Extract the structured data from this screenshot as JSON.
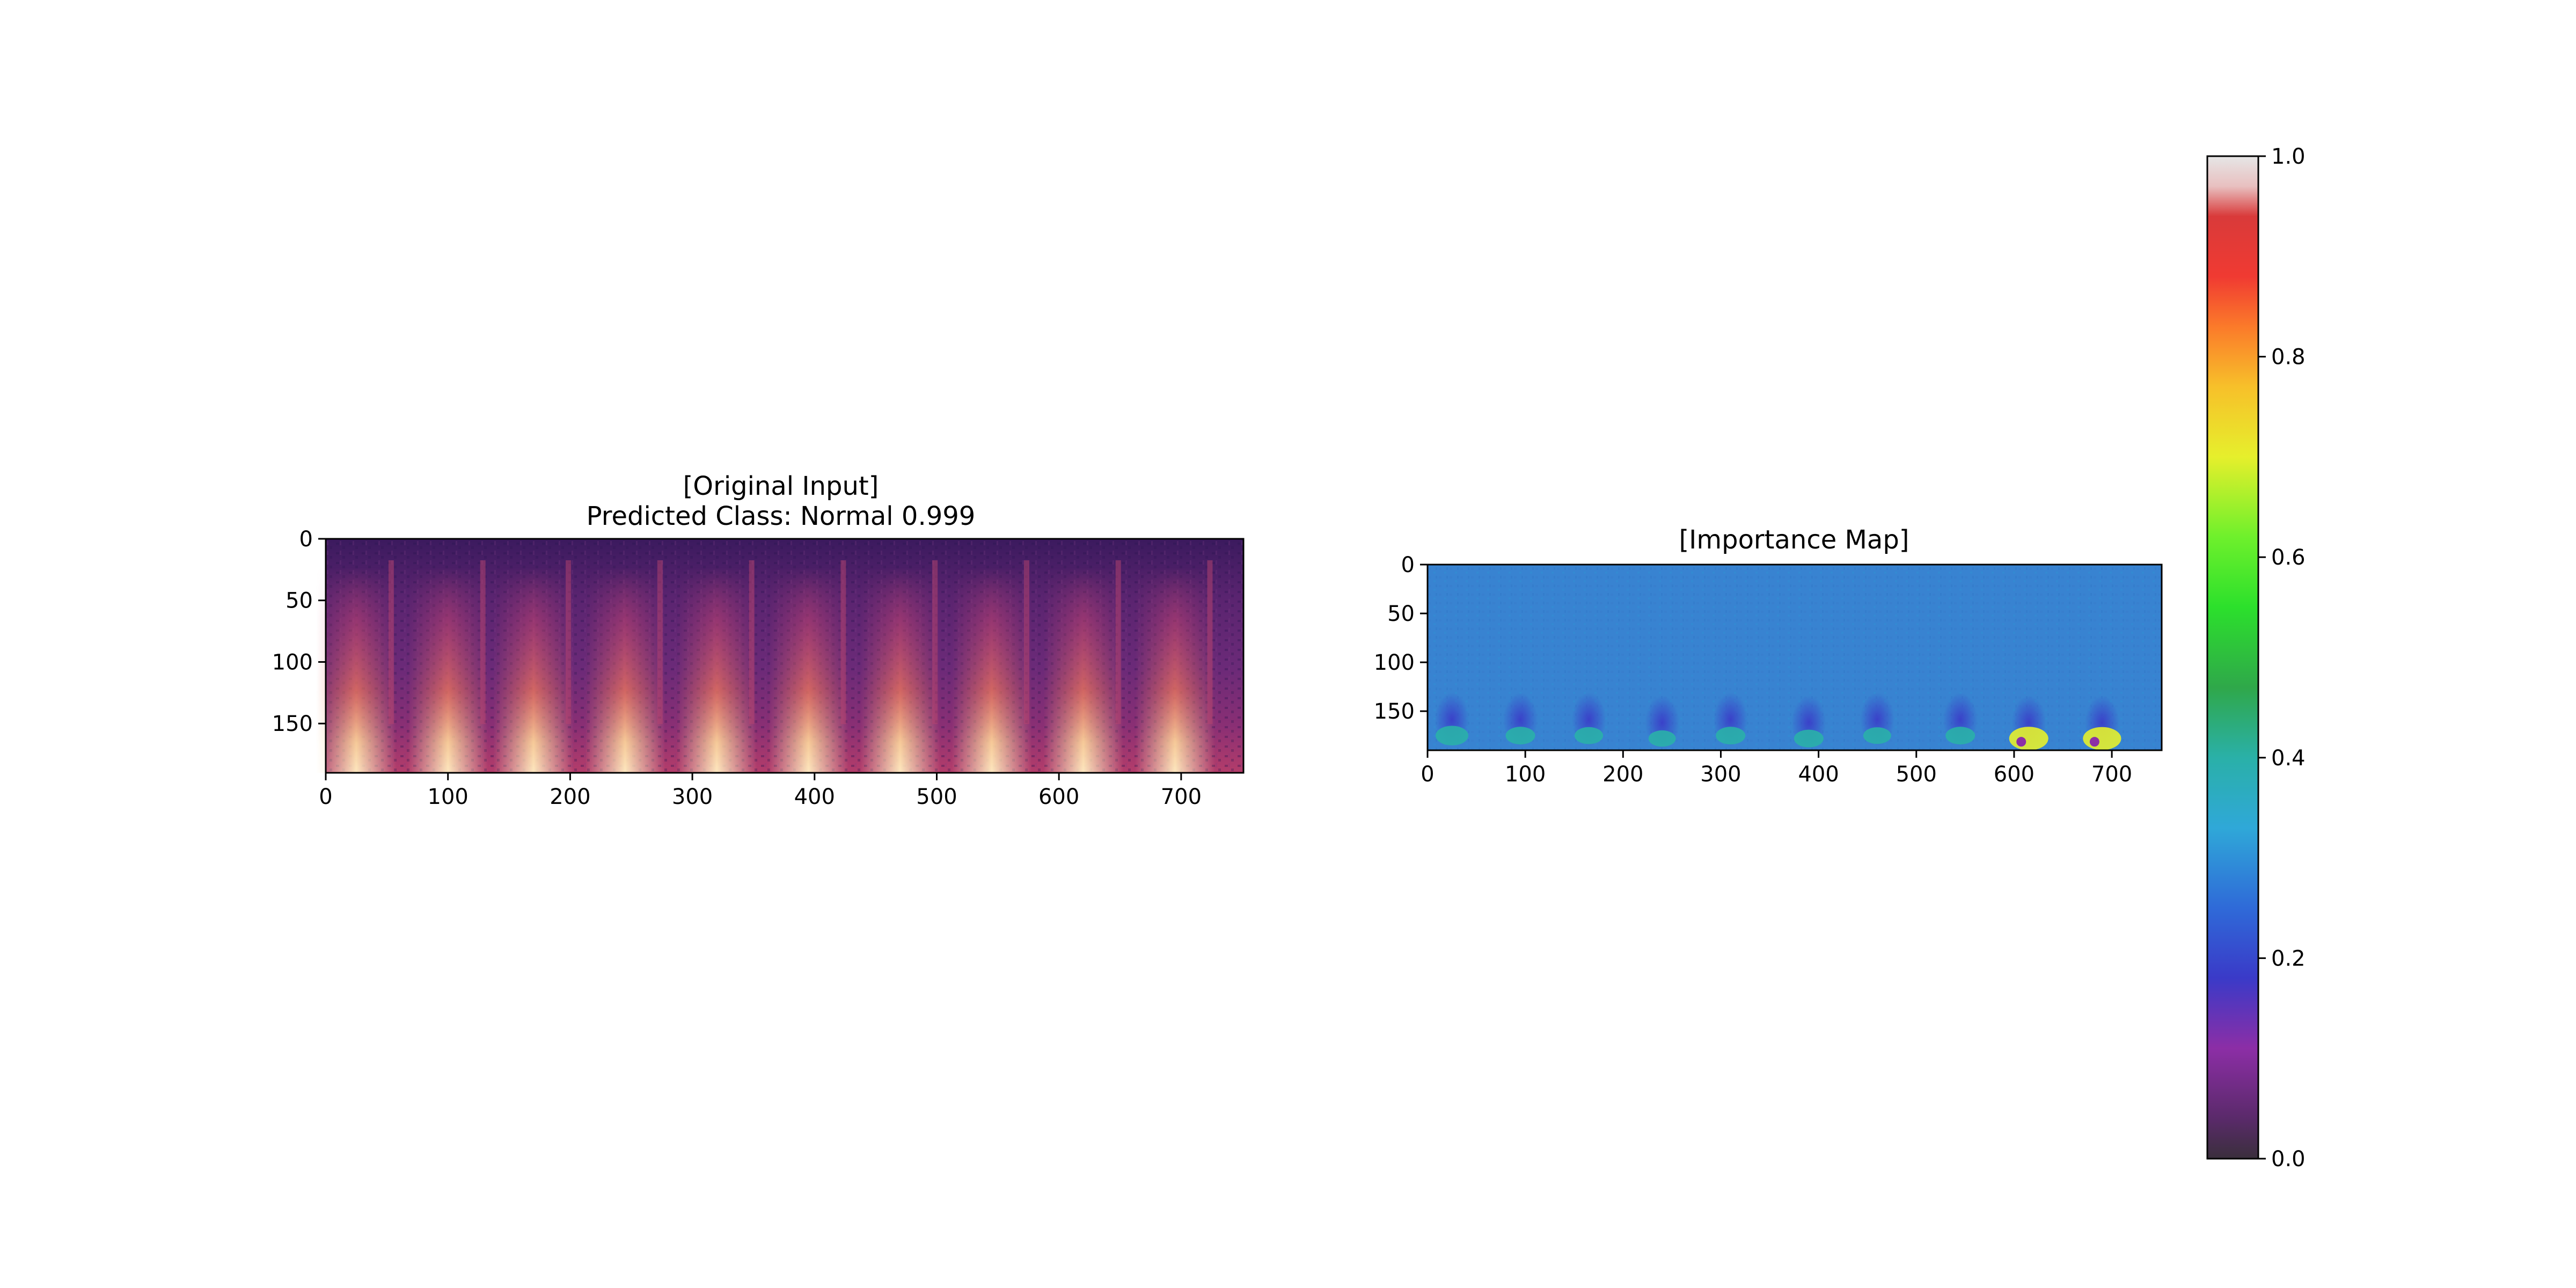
{
  "chart_data": [
    {
      "type": "heatmap",
      "title": "[Original Input]",
      "subtitle": "Predicted Class: Normal 0.999",
      "predicted_class": "Normal",
      "predicted_confidence": 0.999,
      "xlim": [
        0,
        751
      ],
      "ylim": [
        190,
        0
      ],
      "xticks": [
        0,
        100,
        200,
        300,
        400,
        500,
        600,
        700
      ],
      "yticks": [
        0,
        50,
        100,
        150
      ],
      "colormap": "magma",
      "pattern": "periodic bright vertical bursts at the bottom (~y 160-190) recurring about every 75 x-units",
      "burst_centers_x": [
        25,
        100,
        170,
        245,
        320,
        395,
        470,
        545,
        620,
        695
      ]
    },
    {
      "type": "heatmap",
      "title": "[Importance Map]",
      "xlim": [
        0,
        751
      ],
      "ylim": [
        190,
        0
      ],
      "xticks": [
        0,
        100,
        200,
        300,
        400,
        500,
        600,
        700
      ],
      "yticks": [
        0,
        50,
        100,
        150
      ],
      "colormap": "nipy_spectral",
      "value_range": [
        0.0,
        1.0
      ],
      "background_level": 0.3,
      "hotspots": [
        {
          "x": 25,
          "y": 175,
          "value": 0.55
        },
        {
          "x": 95,
          "y": 175,
          "value": 0.45
        },
        {
          "x": 165,
          "y": 175,
          "value": 0.42
        },
        {
          "x": 240,
          "y": 178,
          "value": 0.38
        },
        {
          "x": 310,
          "y": 175,
          "value": 0.45
        },
        {
          "x": 390,
          "y": 178,
          "value": 0.45
        },
        {
          "x": 460,
          "y": 175,
          "value": 0.4
        },
        {
          "x": 545,
          "y": 175,
          "value": 0.45
        },
        {
          "x": 615,
          "y": 178,
          "value": 0.75
        },
        {
          "x": 690,
          "y": 178,
          "value": 0.72
        }
      ],
      "colorbar": {
        "ticks": [
          "0.0",
          "0.2",
          "0.4",
          "0.6",
          "0.8",
          "1.0"
        ],
        "range": [
          0.0,
          1.0
        ]
      }
    }
  ]
}
